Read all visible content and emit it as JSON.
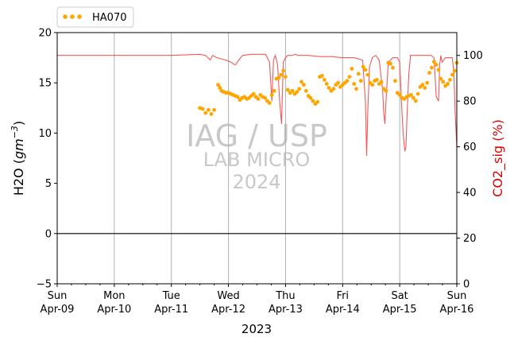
{
  "chart_data": {
    "type": "line",
    "xlabel": "2023",
    "ylabel_left": "H2O (gm⁻³)",
    "ylabel_left_main": "H2O (",
    "ylabel_left_unit": "gm",
    "ylabel_left_exp": "−3",
    "ylabel_left_close": ")",
    "ylabel_right": "CO2_sig (%)",
    "ylim_left": [
      -5,
      20
    ],
    "ylim_right": [
      0,
      110
    ],
    "xlim": [
      "2023-04-09",
      "2023-04-16"
    ],
    "yticks_left": [
      "−5",
      "0",
      "5",
      "10",
      "15",
      "20"
    ],
    "yticks_left_values": [
      -5,
      0,
      5,
      10,
      15,
      20
    ],
    "yticks_right": [
      "0",
      "20",
      "40",
      "60",
      "80",
      "100"
    ],
    "yticks_right_values": [
      0,
      20,
      40,
      60,
      80,
      100
    ],
    "xticks": [
      {
        "day": "Sun",
        "date": "Apr-09"
      },
      {
        "day": "Mon",
        "date": "Apr-10"
      },
      {
        "day": "Tue",
        "date": "Apr-11"
      },
      {
        "day": "Wed",
        "date": "Apr-12"
      },
      {
        "day": "Thu",
        "date": "Apr-13"
      },
      {
        "day": "Fri",
        "date": "Apr-14"
      },
      {
        "day": "Sat",
        "date": "Apr-15"
      },
      {
        "day": "Sun",
        "date": "Apr-16"
      }
    ],
    "vertical_grid": true,
    "zero_line": true,
    "legend": {
      "placement": "top-left, above plot",
      "entries": [
        "HA070"
      ]
    },
    "watermark": [
      "IAG / USP",
      "LAB MICRO",
      "2024"
    ],
    "colors": {
      "h2o": "#ffa500",
      "co2": "#f03c3c",
      "co2_label": "#e00000",
      "grid": "#b0b0b0",
      "watermark": "#c8c8c8"
    },
    "series": [
      {
        "name": "HA070",
        "axis": "left",
        "style": "dots",
        "x": [
          2.5,
          2.55,
          2.6,
          2.65,
          2.7,
          2.75,
          2.82,
          2.85,
          2.88,
          2.92,
          2.96,
          3.0,
          3.04,
          3.08,
          3.12,
          3.16,
          3.2,
          3.24,
          3.28,
          3.32,
          3.36,
          3.4,
          3.44,
          3.48,
          3.52,
          3.56,
          3.6,
          3.64,
          3.68,
          3.72,
          3.76,
          3.8,
          3.84,
          3.88,
          3.92,
          3.96,
          4.0,
          4.04,
          4.08,
          4.12,
          4.16,
          4.2,
          4.24,
          4.28,
          4.32,
          4.36,
          4.4,
          4.44,
          4.48,
          4.52,
          4.56,
          4.6,
          4.64,
          4.68,
          4.72,
          4.76,
          4.8,
          4.84,
          4.88,
          4.92,
          4.96,
          5.0,
          5.04,
          5.08,
          5.12,
          5.16,
          5.2,
          5.24,
          5.28,
          5.32,
          5.36,
          5.4,
          5.44,
          5.48,
          5.52,
          5.56,
          5.6,
          5.64,
          5.68,
          5.72,
          5.76,
          5.8,
          5.84,
          5.88,
          5.92,
          5.96,
          6.0,
          6.04,
          6.08,
          6.12,
          6.16,
          6.2,
          6.24,
          6.28,
          6.32,
          6.36,
          6.4,
          6.44,
          6.48,
          6.52,
          6.56,
          6.6,
          6.64,
          6.68,
          6.72,
          6.76,
          6.8,
          6.84,
          6.88,
          6.92,
          6.96,
          7.0
        ],
        "values": [
          12.5,
          12.4,
          12.0,
          12.3,
          11.9,
          12.3,
          14.8,
          14.5,
          14.2,
          14.1,
          14.0,
          14.0,
          13.9,
          13.8,
          13.7,
          13.6,
          13.3,
          13.5,
          13.6,
          13.4,
          13.5,
          13.7,
          13.9,
          13.6,
          13.4,
          13.8,
          13.6,
          13.5,
          13.2,
          13.0,
          13.8,
          14.2,
          15.4,
          15.5,
          15.8,
          16.2,
          15.6,
          14.3,
          14.0,
          14.2,
          13.9,
          14.1,
          14.4,
          15.1,
          14.8,
          14.2,
          13.7,
          13.5,
          13.2,
          12.9,
          13.1,
          15.6,
          15.7,
          15.3,
          14.9,
          14.5,
          14.2,
          14.4,
          14.8,
          15.0,
          14.6,
          14.8,
          15.0,
          15.2,
          15.6,
          16.4,
          14.9,
          14.4,
          15.9,
          15.2,
          16.6,
          16.3,
          15.8,
          15.0,
          14.8,
          15.2,
          15.3,
          14.9,
          15.1,
          14.4,
          14.2,
          17.0,
          16.9,
          16.5,
          15.2,
          14.0,
          13.8,
          13.5,
          13.4,
          13.6,
          13.7,
          13.8,
          13.5,
          13.2,
          13.9,
          14.6,
          14.8,
          14.5,
          15.0,
          16.0,
          16.5,
          17.1,
          16.8,
          16.3,
          15.4,
          15.1,
          14.7,
          14.9,
          15.3,
          15.8,
          16.2,
          17.0
        ]
      },
      {
        "name": "CO2_sig",
        "axis": "right",
        "style": "line",
        "x": [
          0.0,
          0.5,
          1.0,
          1.5,
          2.0,
          2.5,
          2.6,
          2.68,
          2.72,
          2.8,
          2.95,
          3.05,
          3.1,
          3.13,
          3.18,
          3.25,
          3.4,
          3.65,
          3.72,
          3.76,
          3.79,
          3.82,
          3.86,
          3.9,
          3.93,
          3.96,
          4.0,
          4.04,
          4.08,
          4.12,
          4.17,
          4.22,
          4.4,
          4.6,
          4.8,
          5.0,
          5.2,
          5.35,
          5.4,
          5.42,
          5.44,
          5.47,
          5.52,
          5.58,
          5.64,
          5.7,
          5.72,
          5.74,
          5.76,
          5.8,
          5.88,
          5.96,
          6.0,
          6.04,
          6.06,
          6.09,
          6.11,
          6.13,
          6.16,
          6.19,
          6.22,
          6.26,
          6.3,
          6.4,
          6.55,
          6.6,
          6.64,
          6.68,
          6.7,
          6.72,
          6.74,
          6.8,
          6.92,
          6.95,
          6.97,
          7.0
        ],
        "values": [
          100,
          100,
          100,
          100,
          100,
          100.5,
          100,
          98,
          100,
          99,
          98,
          97,
          96,
          96,
          98,
          100,
          100.5,
          100.5,
          97,
          80,
          98,
          100,
          96,
          79,
          70,
          97,
          99,
          100,
          100,
          100,
          100.5,
          100,
          100,
          99.5,
          99.5,
          99,
          99,
          98,
          80,
          56,
          75,
          95,
          99,
          100,
          98,
          85,
          75,
          70,
          80,
          97,
          99,
          99,
          97,
          75,
          66,
          58,
          60,
          75,
          92,
          100,
          100,
          100,
          100,
          100,
          100,
          99,
          82,
          80,
          96,
          100,
          97,
          99,
          99,
          92,
          76,
          60
        ]
      }
    ]
  }
}
